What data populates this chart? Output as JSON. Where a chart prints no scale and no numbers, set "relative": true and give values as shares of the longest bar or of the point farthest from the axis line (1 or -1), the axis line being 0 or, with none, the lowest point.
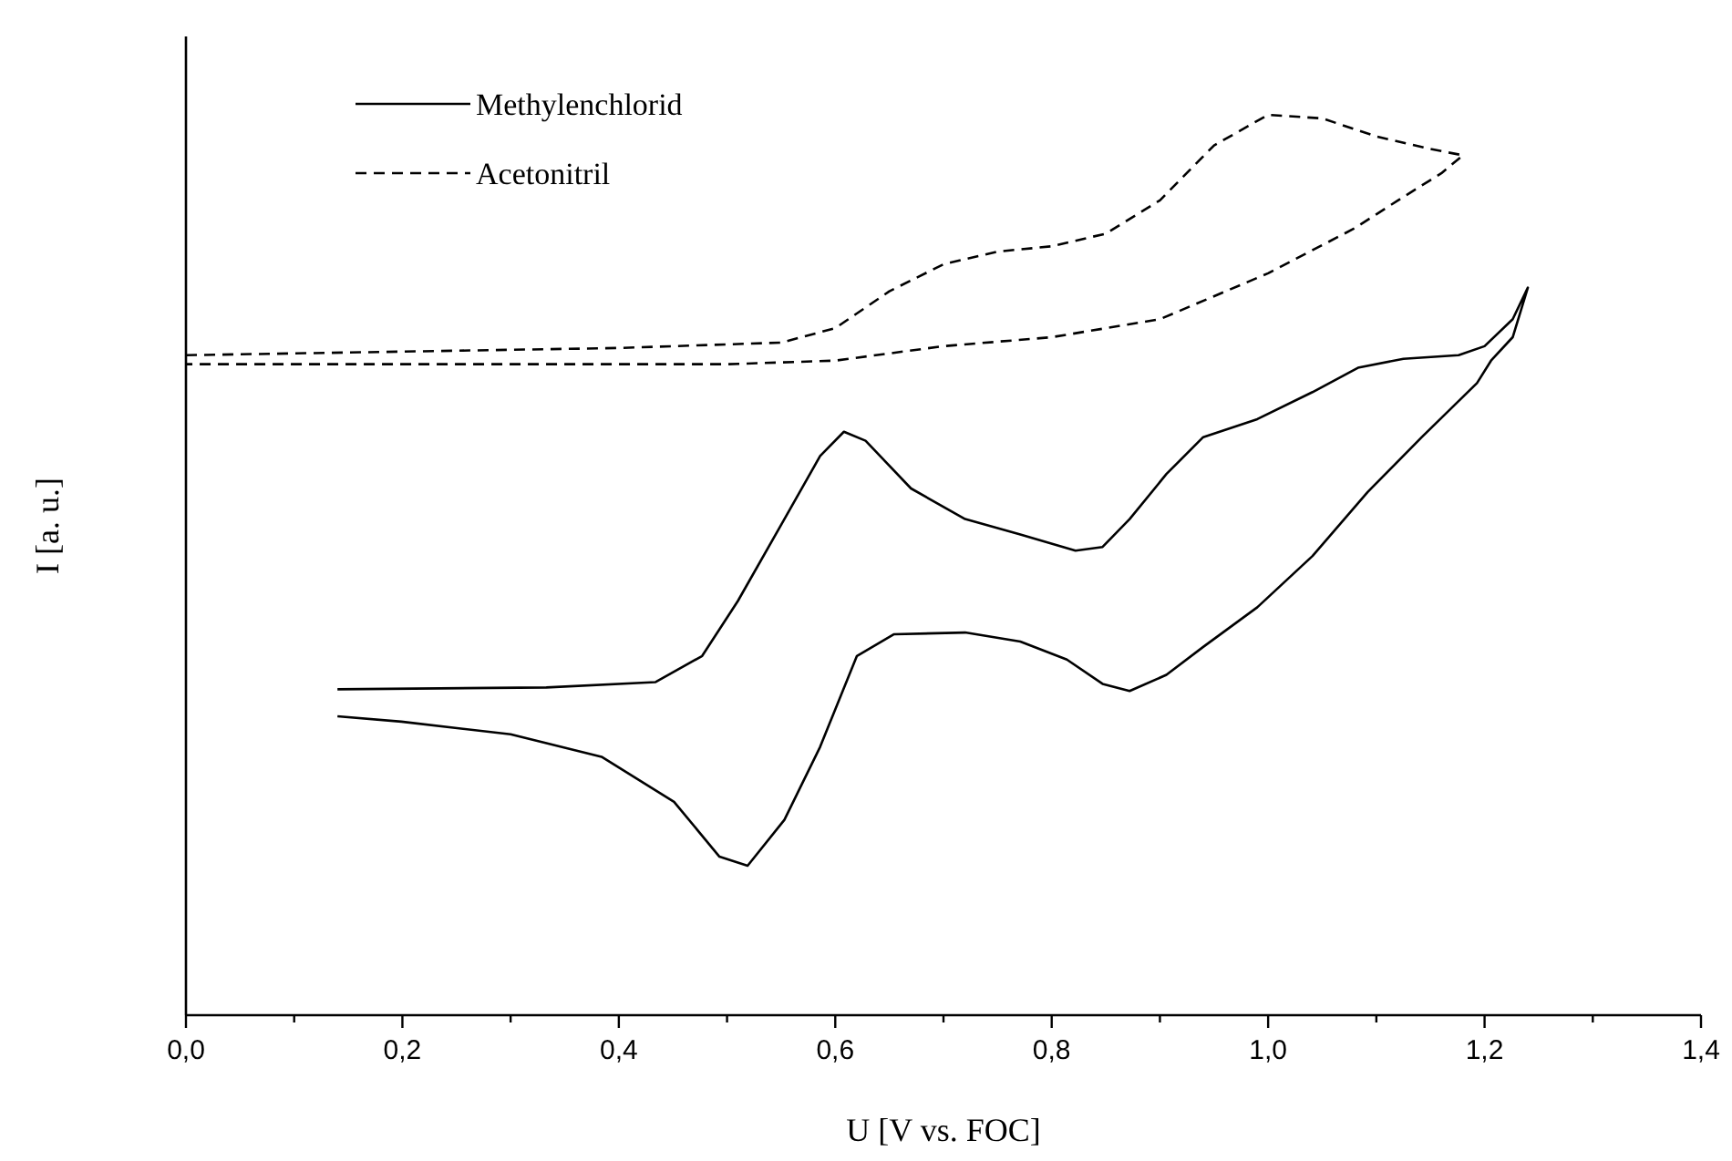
{
  "chart_data": {
    "type": "line",
    "relative": true,
    "xlabel": "U [V vs. FOC]",
    "ylabel": "I [a. u.]",
    "legend": "top left",
    "grid": false,
    "xlim": [
      0,
      1.4
    ],
    "xticks": [
      {
        "value": 0,
        "label": "0,0"
      },
      {
        "value": 0.1,
        "label": null
      },
      {
        "value": 0.2,
        "label": "0,2"
      },
      {
        "value": 0.3,
        "label": null
      },
      {
        "value": 0.4,
        "label": "0,4"
      },
      {
        "value": 0.5,
        "label": null
      },
      {
        "value": 0.6,
        "label": "0,6"
      },
      {
        "value": 0.7,
        "label": null
      },
      {
        "value": 0.8,
        "label": "0,8"
      },
      {
        "value": 0.9,
        "label": null
      },
      {
        "value": 1.0,
        "label": "1,0"
      },
      {
        "value": 1.1,
        "label": null
      },
      {
        "value": 1.2,
        "label": "1,2"
      },
      {
        "value": 1.3,
        "label": null
      },
      {
        "value": 1.4,
        "label": "1,4"
      }
    ],
    "series": [
      {
        "name": "Methylenchlorid",
        "color": "#000000",
        "line_style": "solid",
        "x": [
          0.14,
          0.333,
          0.434,
          0.477,
          0.51,
          0.553,
          0.586,
          0.608,
          0.628,
          0.67,
          0.72,
          0.771,
          0.822,
          0.847,
          0.872,
          0.906,
          0.94,
          0.99,
          1.041,
          1.083,
          1.125,
          1.176,
          1.2,
          1.226,
          1.24,
          1.226,
          1.206,
          1.193,
          1.142,
          1.092,
          1.041,
          0.99,
          0.94,
          0.906,
          0.872,
          0.847,
          0.814,
          0.771,
          0.72,
          0.654,
          0.62,
          0.586,
          0.553,
          0.519,
          0.493,
          0.451,
          0.384,
          0.3,
          0.199,
          0.14
        ],
        "values": [
          0.362,
          0.364,
          0.37,
          0.399,
          0.46,
          0.551,
          0.621,
          0.648,
          0.638,
          0.585,
          0.551,
          0.534,
          0.516,
          0.52,
          0.551,
          0.601,
          0.642,
          0.662,
          0.692,
          0.719,
          0.729,
          0.733,
          0.743,
          0.773,
          0.808,
          0.753,
          0.727,
          0.702,
          0.642,
          0.581,
          0.51,
          0.453,
          0.409,
          0.378,
          0.36,
          0.368,
          0.395,
          0.415,
          0.425,
          0.423,
          0.399,
          0.298,
          0.217,
          0.166,
          0.176,
          0.237,
          0.287,
          0.312,
          0.326,
          0.332
        ]
      },
      {
        "name": "Acetonitril",
        "color": "#000000",
        "line_style": "dashed",
        "x": [
          0,
          0.4,
          0.55,
          0.6,
          0.65,
          0.7,
          0.75,
          0.8,
          0.85,
          0.9,
          0.95,
          1.0,
          1.05,
          1.1,
          1.15,
          1.18,
          1.16,
          1.12,
          1.08,
          1.0,
          0.9,
          0.8,
          0.7,
          0.6,
          0.5,
          0
        ],
        "values": [
          0.733,
          0.741,
          0.747,
          0.763,
          0.804,
          0.834,
          0.848,
          0.854,
          0.868,
          0.905,
          0.966,
          1.0,
          0.996,
          0.976,
          0.962,
          0.955,
          0.935,
          0.905,
          0.874,
          0.824,
          0.773,
          0.753,
          0.743,
          0.727,
          0.723,
          0.723
        ]
      }
    ]
  }
}
